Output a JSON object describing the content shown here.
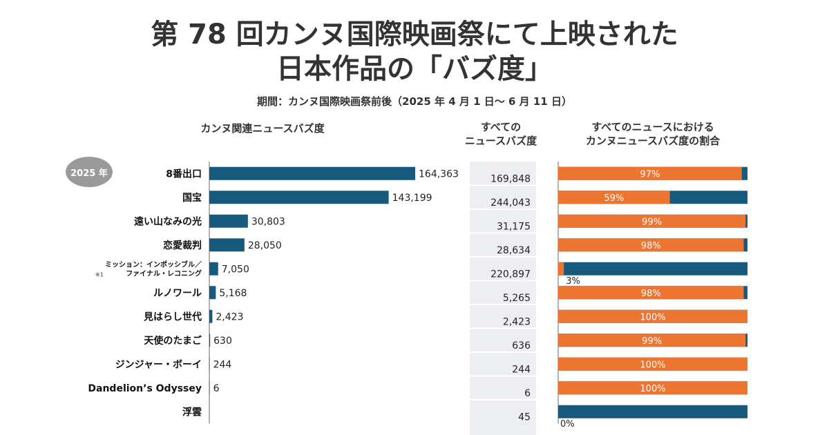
{
  "title_line1": "第 78 回カンヌ国際映画祭にて上映された",
  "title_line2": "日本作品の「バズ度」",
  "subtitle": "期間：カンヌ国際映画祭前後（2025 年 4 月 1 日～ 6 月 11 日）",
  "year_badge": "2025 年",
  "headers": {
    "left": "カンヌ関連ニュースバズ度",
    "mid_line1": "すべての",
    "mid_line2": "ニュースバズ度",
    "right_line1": "すべてのニュースにおける",
    "right_line2": "カンヌニュースバズ度の割合"
  },
  "colors": {
    "bar": "#175a7d",
    "orange": "#ec7532",
    "divider": "#ffffff"
  },
  "chart_data": [
    {
      "type": "bar",
      "title": "カンヌ関連ニュースバズ度",
      "orientation": "horizontal",
      "categories": [
        "8番出口",
        "国宝",
        "遠い山なみの光",
        "恋愛裁判",
        "ミッション：インポッシブル／ファイナル・レコニング",
        "ルノワール",
        "見はらし世代",
        "天使のたまご",
        "ジンジャー・ボーイ",
        "Dandelion’s Odyssey",
        "浮雲"
      ],
      "category_labels": [
        [
          "8番出口"
        ],
        [
          "国宝"
        ],
        [
          "遠い山なみの光"
        ],
        [
          "恋愛裁判"
        ],
        [
          "ミッション：インポッシブル／",
          "ファイナル・レコニング"
        ],
        [
          "ルノワール"
        ],
        [
          "見はらし世代"
        ],
        [
          "天使のたまご"
        ],
        [
          "ジンジャー・ボーイ"
        ],
        [
          "Dandelion’s Odyssey"
        ],
        [
          "浮雲"
        ]
      ],
      "footnote_marker": "※1",
      "values": [
        164363,
        143199,
        30803,
        28050,
        7050,
        5168,
        2423,
        630,
        244,
        6,
        null
      ],
      "value_labels": [
        "164,363",
        "143,199",
        "30,803",
        "28,050",
        "7,050",
        "5,168",
        "2,423",
        "630",
        "244",
        "6",
        ""
      ]
    },
    {
      "type": "table",
      "title_lines": [
        "すべての",
        "ニュースバズ度"
      ],
      "values": [
        169848,
        244043,
        31175,
        28634,
        220897,
        5265,
        2423,
        636,
        244,
        6,
        45
      ],
      "value_labels": [
        "169,848",
        "244,043",
        "31,175",
        "28,634",
        "220,897",
        "5,265",
        "2,423",
        "636",
        "244",
        "6",
        "45"
      ]
    },
    {
      "type": "bar",
      "stacked": true,
      "title_lines": [
        "すべてのニュースにおける",
        "カンヌニュースバズ度の割合"
      ],
      "series": [
        {
          "name": "カンヌ関連",
          "values": [
            97,
            59,
            99,
            98,
            3,
            98,
            100,
            99,
            100,
            100,
            0
          ]
        }
      ],
      "value_labels": [
        "97%",
        "59%",
        "99%",
        "98%",
        "3%",
        "98%",
        "100%",
        "99%",
        "100%",
        "100%",
        "0%"
      ],
      "xlim": [
        0,
        100
      ]
    }
  ]
}
